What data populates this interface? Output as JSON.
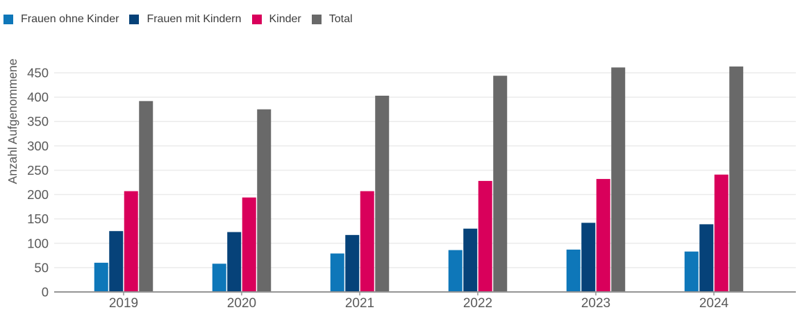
{
  "chart_data": {
    "type": "bar",
    "title": "",
    "xlabel": "",
    "ylabel": "Anzahl Aufgenommene",
    "categories": [
      "2019",
      "2020",
      "2021",
      "2022",
      "2023",
      "2024"
    ],
    "series": [
      {
        "name": "Frauen ohne Kinder",
        "color": "#0e77b9",
        "values": [
          60,
          58,
          79,
          86,
          87,
          83
        ]
      },
      {
        "name": "Frauen mit Kindern",
        "color": "#064279",
        "values": [
          125,
          123,
          117,
          130,
          142,
          139
        ]
      },
      {
        "name": "Kinder",
        "color": "#d9005b",
        "values": [
          207,
          194,
          207,
          228,
          232,
          241
        ]
      },
      {
        "name": "Total",
        "color": "#696969",
        "values": [
          392,
          375,
          403,
          444,
          461,
          463
        ]
      }
    ],
    "ylim": [
      0,
      450
    ],
    "ytick_step": 50,
    "y_tick_labels": [
      "0",
      "50",
      "100",
      "150",
      "200",
      "250",
      "300",
      "350",
      "400",
      "450"
    ],
    "grid": true,
    "legend_position": "top-left"
  },
  "legend": {
    "items": [
      {
        "label": "Frauen ohne Kinder",
        "color": "#0e77b9"
      },
      {
        "label": "Frauen mit Kindern",
        "color": "#064279"
      },
      {
        "label": "Kinder",
        "color": "#d9005b"
      },
      {
        "label": "Total",
        "color": "#696969"
      }
    ]
  },
  "style": {
    "gridline_color": "#ebebeb",
    "baseline_color": "#949494",
    "tick_label_color": "#595959",
    "axis_title_color": "#595959",
    "legend_text_color": "#3c3c3c"
  }
}
